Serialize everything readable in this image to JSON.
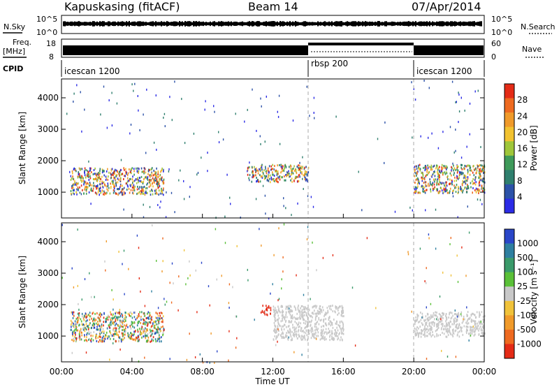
{
  "header": {
    "station": "Kapuskasing (fitACF)",
    "beam": "Beam 14",
    "date": "07/Apr/2014"
  },
  "noise_panel": {
    "left_label": "N.Sky",
    "left_ticks": [
      "10^5",
      "10^0"
    ],
    "right_label": "N.Search",
    "right_ticks": [
      "10^5",
      "10^0"
    ]
  },
  "freq_panel": {
    "left_label_1": "Freq.",
    "left_label_2": "[MHz]",
    "left_ticks": [
      "18",
      "8"
    ],
    "right_label": "Nave",
    "right_ticks": [
      "60",
      "0"
    ]
  },
  "cpid_panel": {
    "label": "CPID",
    "segments": [
      {
        "name": "icescan 1200",
        "start": 0,
        "end": 14
      },
      {
        "name": "rbsp 200",
        "start": 14,
        "end": 20
      },
      {
        "name": "icescan 1200",
        "start": 20,
        "end": 24
      }
    ]
  },
  "chart_data": [
    {
      "type": "heatmap",
      "name": "power",
      "ylabel": "Slant Range [km]",
      "xlim": [
        0,
        24
      ],
      "ylim": [
        180,
        4600
      ],
      "yticks": [
        "1000",
        "2000",
        "3000",
        "4000"
      ],
      "colorbar": {
        "label": "Power [dB]",
        "ticks": [
          "28",
          "24",
          "20",
          "16",
          "12",
          "8",
          "4"
        ],
        "colors": [
          "#2b2be6",
          "#2c52a8",
          "#2f7f6e",
          "#3f9a5a",
          "#9fc63a",
          "#f2c230",
          "#f09a2a",
          "#ee6a20",
          "#e42b16"
        ]
      },
      "echo_regions": [
        {
          "x": [
            0.5,
            5.8
          ],
          "y": [
            950,
            1800
          ],
          "level": "12-24 dB"
        },
        {
          "x": [
            10.5,
            14.0
          ],
          "y": [
            1350,
            1900
          ],
          "level": "8-16 dB"
        },
        {
          "x": [
            20.0,
            24.0
          ],
          "y": [
            1000,
            1900
          ],
          "level": "4-16 dB"
        }
      ]
    },
    {
      "type": "heatmap",
      "name": "velocity",
      "ylabel": "Slant Range [km]",
      "xlabel": "Time UT",
      "xlim": [
        0,
        24
      ],
      "ylim": [
        180,
        4600
      ],
      "yticks": [
        "1000",
        "2000",
        "3000",
        "4000"
      ],
      "xticks": [
        "00:00",
        "04:00",
        "08:00",
        "12:00",
        "16:00",
        "20:00",
        "00:00"
      ],
      "colorbar": {
        "label": "Velocity [m s⁻¹]",
        "ticks": [
          "1000",
          "500",
          "100",
          "25",
          "-25",
          "-100",
          "-500",
          "-1000"
        ],
        "colors": [
          "#2a46c8",
          "#2e7fa0",
          "#3a9a6a",
          "#5ac038",
          "#c8c8c8",
          "#f0c23a",
          "#f09a2a",
          "#ee6a20",
          "#e42b16"
        ]
      },
      "echo_regions": [
        {
          "x": [
            0.5,
            5.8
          ],
          "y": [
            850,
            1800
          ],
          "level": "mixed +/-"
        },
        {
          "x": [
            11.3,
            11.9
          ],
          "y": [
            1700,
            2000
          ],
          "level": "-1000 m/s"
        },
        {
          "x": [
            12.0,
            16.0
          ],
          "y": [
            900,
            2000
          ],
          "level": "ground scatter"
        },
        {
          "x": [
            20.0,
            24.0
          ],
          "y": [
            1000,
            1800
          ],
          "level": "ground scatter"
        }
      ]
    }
  ]
}
